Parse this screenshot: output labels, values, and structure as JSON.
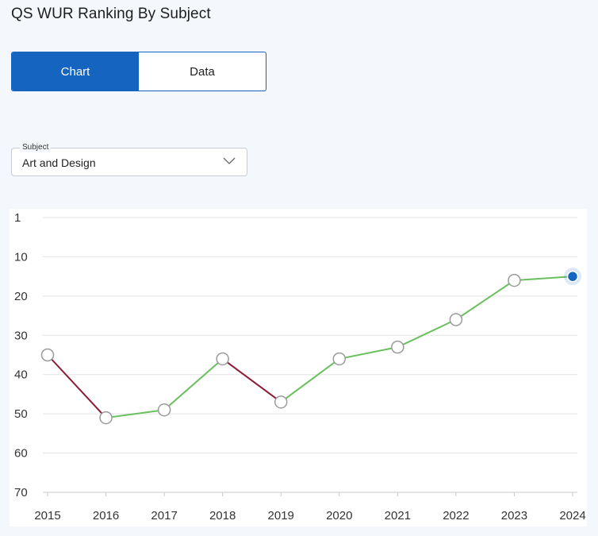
{
  "page": {
    "title": "QS WUR Ranking By Subject"
  },
  "view_toggle": {
    "chart_label": "Chart",
    "data_label": "Data",
    "active": "chart"
  },
  "subject_select": {
    "label": "Subject",
    "value": "Art and Design"
  },
  "colors": {
    "accent": "#1565c0",
    "improving": "#6abf5e",
    "declining": "#8b1a35",
    "marker_stroke": "#9a9a9a",
    "highlight": "#1565c0"
  },
  "chart_data": {
    "type": "line",
    "title": "",
    "xlabel": "",
    "ylabel": "",
    "x": [
      "2015",
      "2016",
      "2017",
      "2018",
      "2019",
      "2020",
      "2021",
      "2022",
      "2023",
      "2024"
    ],
    "series": [
      {
        "values": [
          35,
          51,
          49,
          36,
          47,
          36,
          33,
          26,
          16,
          15
        ]
      }
    ],
    "yticks": [
      1,
      10,
      20,
      30,
      40,
      50,
      60,
      70
    ],
    "ylim": [
      1,
      70
    ],
    "y_inverted": true,
    "grid": true,
    "segment_coloring": "green when rank improves, dark red when rank worsens",
    "highlighted_point": "2024"
  }
}
